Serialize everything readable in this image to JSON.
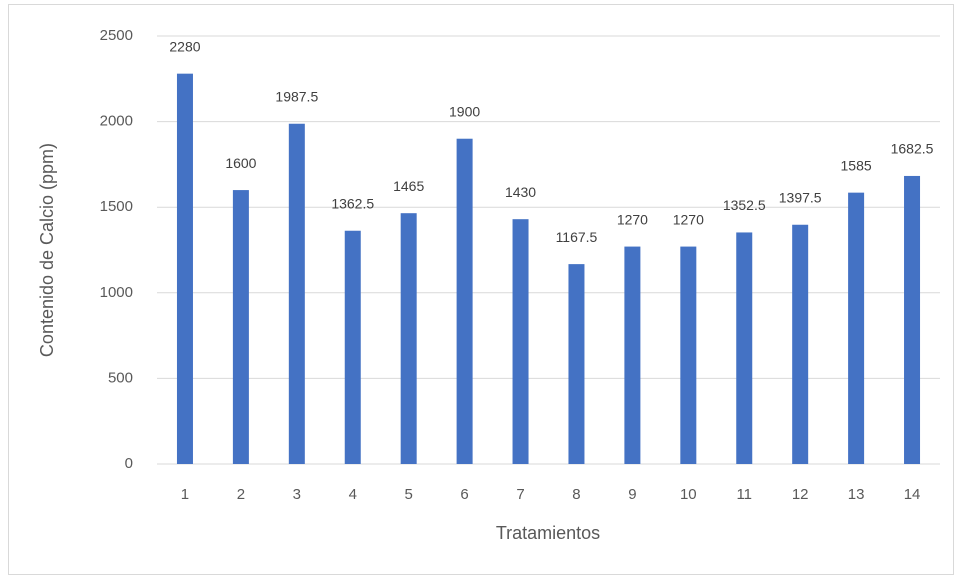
{
  "chart_data": {
    "type": "bar",
    "x_label": "Tratamientos",
    "y_label": "Contenido de Calcio (ppm)",
    "categories": [
      "1",
      "2",
      "3",
      "4",
      "5",
      "6",
      "7",
      "8",
      "9",
      "10",
      "11",
      "12",
      "13",
      "14"
    ],
    "values": [
      2280,
      1600,
      1987.5,
      1362.5,
      1465,
      1900,
      1430,
      1167.5,
      1270,
      1270,
      1352.5,
      1397.5,
      1585,
      1682.5
    ],
    "color": "#4472c4",
    "ylim": [
      0,
      2500
    ],
    "yticks": [
      0,
      500,
      1000,
      1500,
      2000,
      2500
    ],
    "grid": true
  }
}
